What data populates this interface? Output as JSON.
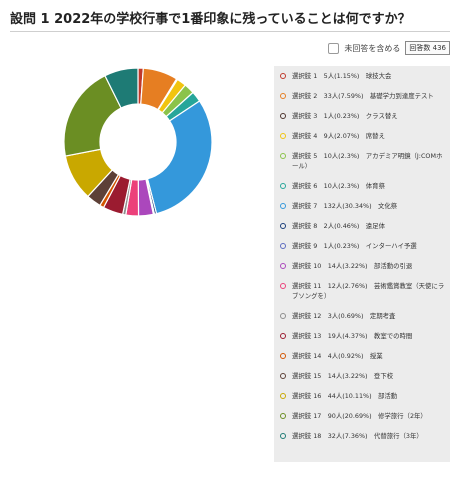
{
  "header": {
    "title": "設問 1 2022年の学校行事で1番印象に残っていることは何ですか？"
  },
  "toolbar": {
    "unanswered_label": "未回答を含める",
    "count_badge": "回答数 436"
  },
  "chart_data": {
    "type": "pie",
    "donut": true,
    "total": 436,
    "slices": [
      {
        "label": "選択肢 1",
        "count": "5人",
        "percent": 1.15,
        "text": "球技大会",
        "color": "#c0392b"
      },
      {
        "label": "選択肢 2",
        "count": "33人",
        "percent": 7.59,
        "text": "基礎学力到達度テスト",
        "color": "#e67e22"
      },
      {
        "label": "選択肢 3",
        "count": "1人",
        "percent": 0.23,
        "text": "クラス替え",
        "color": "#4e342e"
      },
      {
        "label": "選択肢 4",
        "count": "9人",
        "percent": 2.07,
        "text": "席替え",
        "color": "#f1c40f"
      },
      {
        "label": "選択肢 5",
        "count": "10人",
        "percent": 2.3,
        "text": "アカデミア明鏡（J:COMホール）",
        "color": "#8bc34a"
      },
      {
        "label": "選択肢 6",
        "count": "10人",
        "percent": 2.3,
        "text": "体育祭",
        "color": "#26a69a"
      },
      {
        "label": "選択肢 7",
        "count": "132人",
        "percent": 30.34,
        "text": "文化祭",
        "color": "#3498db"
      },
      {
        "label": "選択肢 8",
        "count": "2人",
        "percent": 0.46,
        "text": "遠足体",
        "color": "#1a3e7a"
      },
      {
        "label": "選択肢 9",
        "count": "1人",
        "percent": 0.23,
        "text": "インターハイ予選",
        "color": "#5c6bc0"
      },
      {
        "label": "選択肢 10",
        "count": "14人",
        "percent": 3.22,
        "text": "部活動の引退",
        "color": "#ab47bc"
      },
      {
        "label": "選択肢 11",
        "count": "12人",
        "percent": 2.76,
        "text": "芸術鑑賞教室（天使にラブソングを）",
        "color": "#ec407a"
      },
      {
        "label": "選択肢 12",
        "count": "3人",
        "percent": 0.69,
        "text": "定期考査",
        "color": "#8e8e8e"
      },
      {
        "label": "選択肢 13",
        "count": "19人",
        "percent": 4.37,
        "text": "教室での時間",
        "color": "#9b1b30"
      },
      {
        "label": "選択肢 14",
        "count": "4人",
        "percent": 0.92,
        "text": "授業",
        "color": "#d35400"
      },
      {
        "label": "選択肢 15",
        "count": "14人",
        "percent": 3.22,
        "text": "登下校",
        "color": "#5d4037"
      },
      {
        "label": "選択肢 16",
        "count": "44人",
        "percent": 10.11,
        "text": "部活動",
        "color": "#c9a800"
      },
      {
        "label": "選択肢 17",
        "count": "90人",
        "percent": 20.69,
        "text": "修学旅行（2年）",
        "color": "#6b8e23"
      },
      {
        "label": "選択肢 18",
        "count": "32人",
        "percent": 7.36,
        "text": "代替旅行（3年）",
        "color": "#1e7b75"
      }
    ]
  }
}
